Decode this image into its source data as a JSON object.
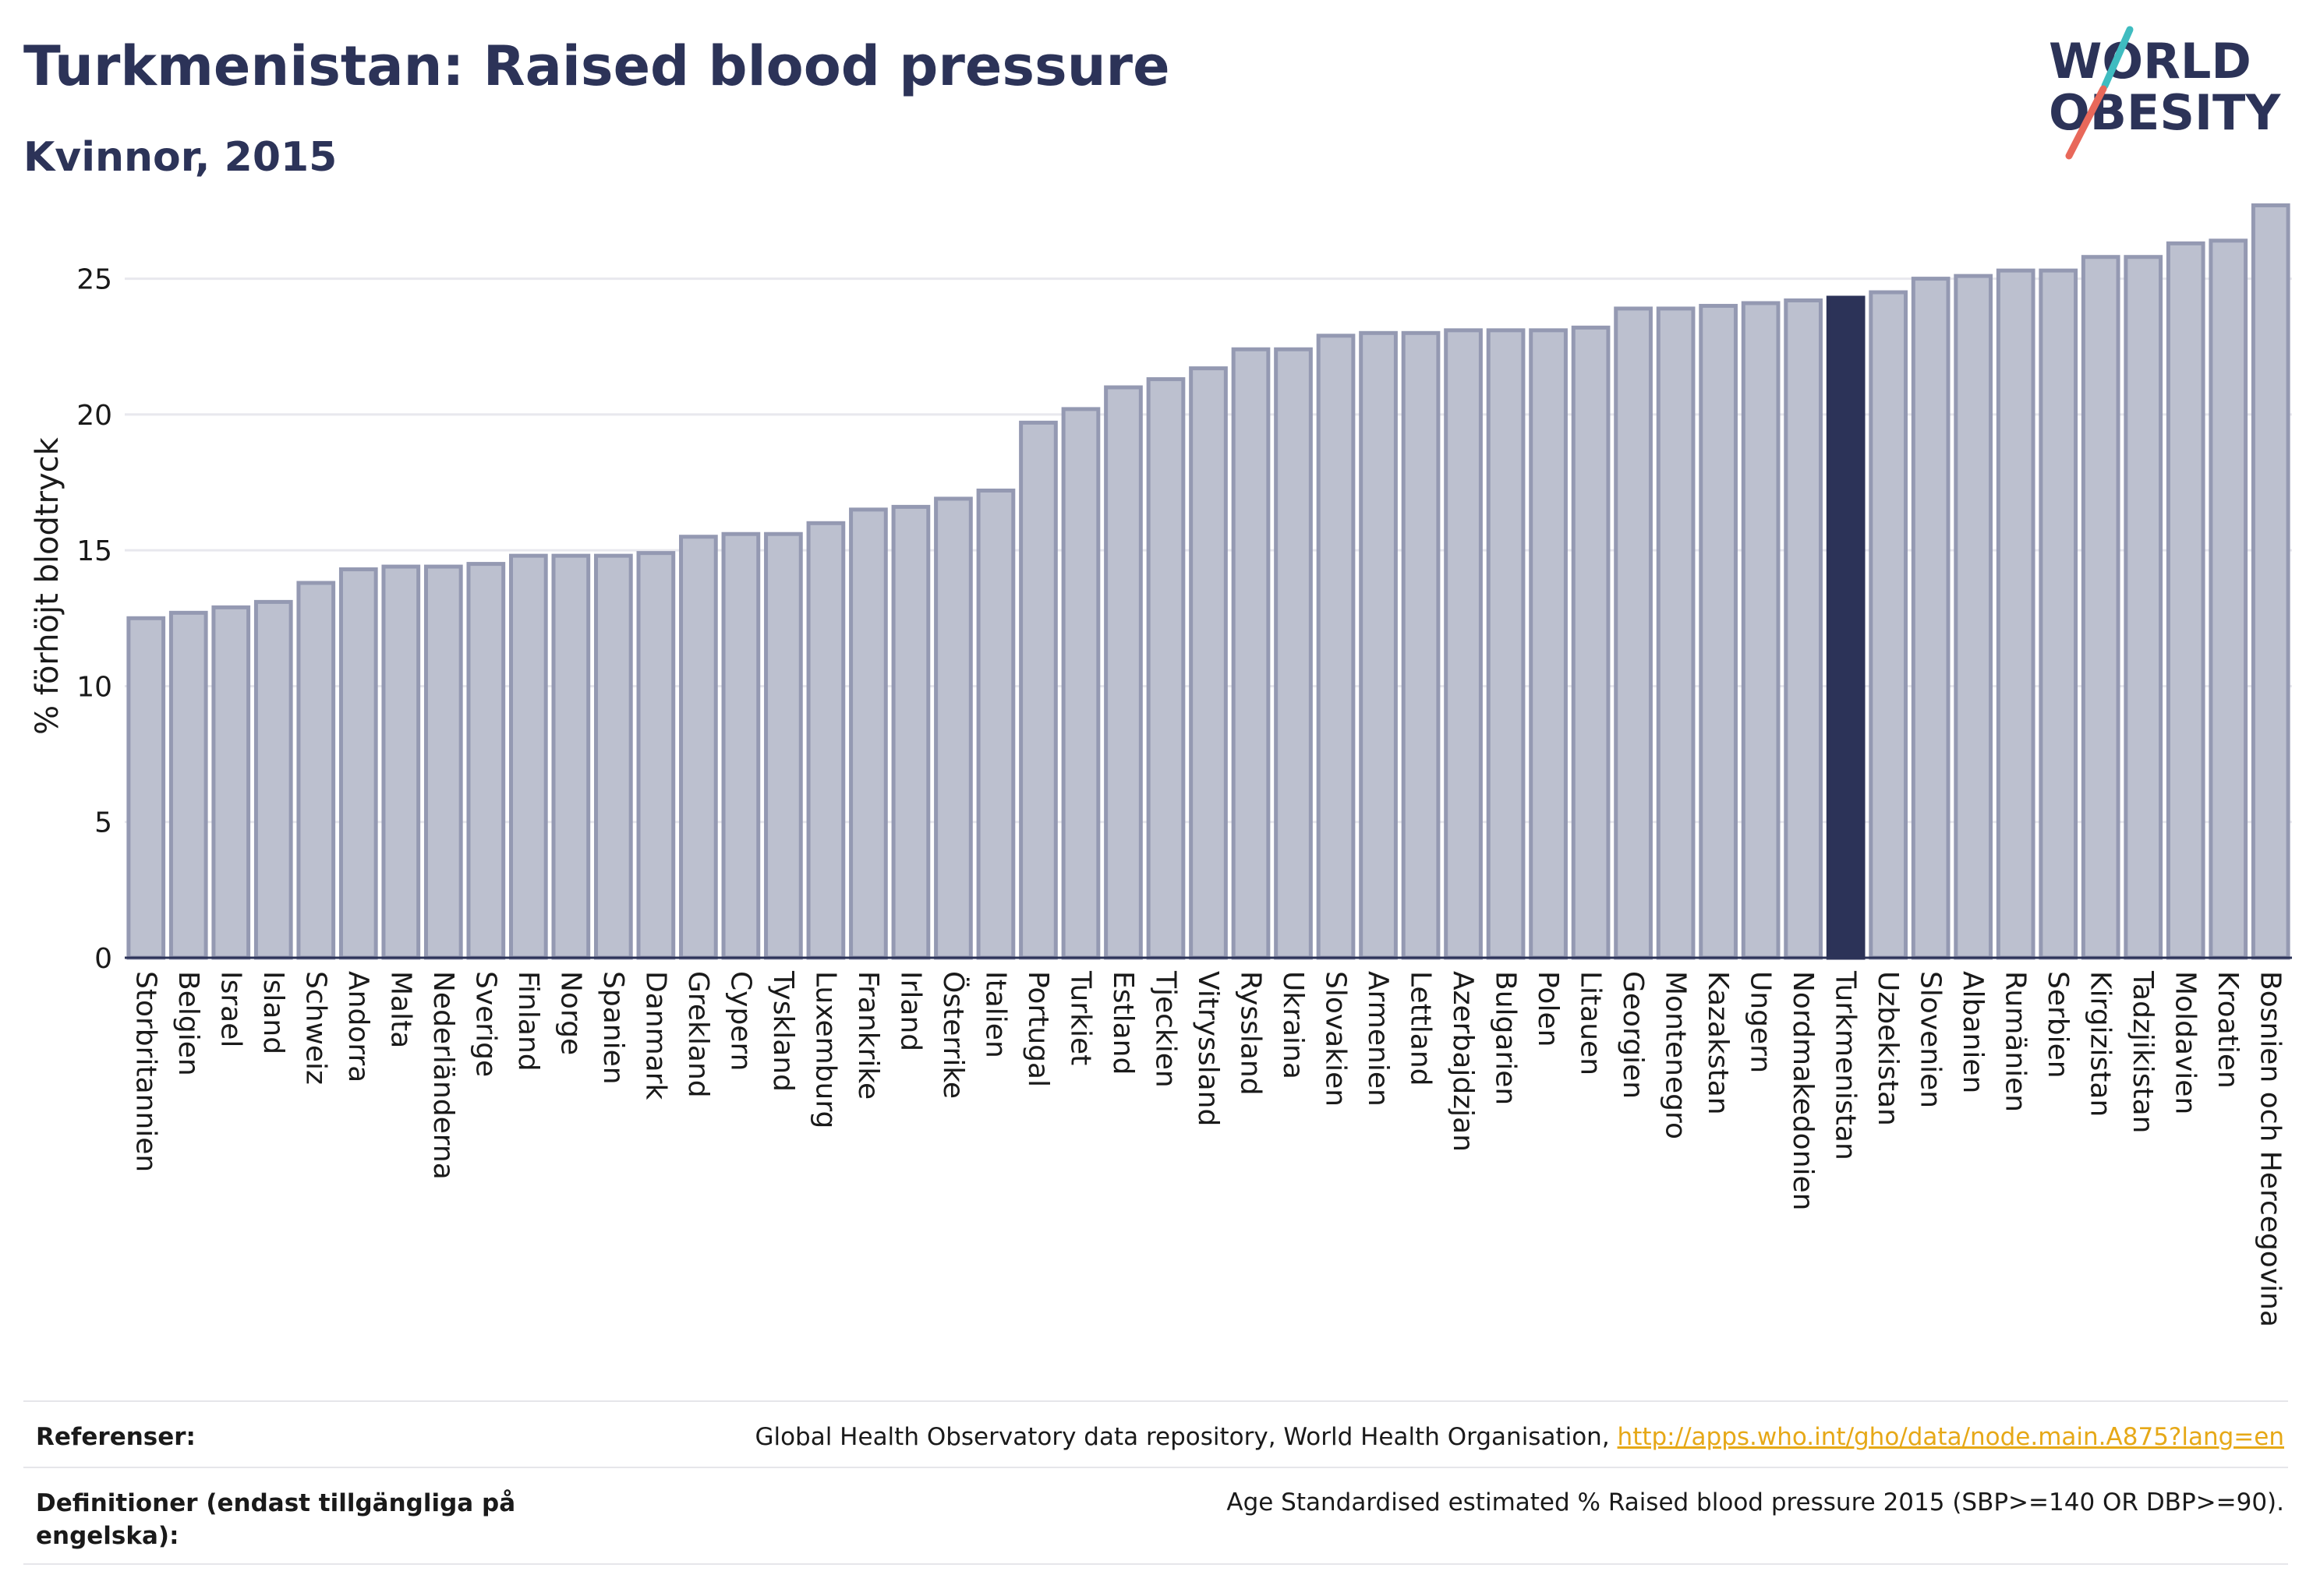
{
  "header": {
    "title": "Turkmenistan: Raised blood pressure",
    "subtitle": "Kvinnor, 2015"
  },
  "logo": {
    "line1": "WORLD",
    "line2": "OBESITY",
    "colors": {
      "text": "#2c3358",
      "slash_teal": "#3fbcc0",
      "slash_red": "#e8685a"
    }
  },
  "colors": {
    "bar_default": "#bcc0cf",
    "bar_default_stroke": "#9499b2",
    "bar_highlight": "#2c3358",
    "grid": "#e8e8ee",
    "axis": "#2c3358",
    "text": "#1a1a1a"
  },
  "chart_data": {
    "type": "bar",
    "ylabel": "% förhöjt blodtryck",
    "ylim": [
      0,
      27.8
    ],
    "yticks": [
      0,
      5,
      10,
      15,
      20,
      25
    ],
    "grid": true,
    "highlight": "Turkmenistan",
    "categories": [
      "Storbritannien",
      "Belgien",
      "Israel",
      "Island",
      "Schweiz",
      "Andorra",
      "Malta",
      "Nederländerna",
      "Sverige",
      "Finland",
      "Norge",
      "Spanien",
      "Danmark",
      "Grekland",
      "Cypern",
      "Tyskland",
      "Luxemburg",
      "Frankrike",
      "Irland",
      "Österrike",
      "Italien",
      "Portugal",
      "Turkiet",
      "Estland",
      "Tjeckien",
      "Vitryssland",
      "Ryssland",
      "Ukraina",
      "Slovakien",
      "Armenien",
      "Lettland",
      "Azerbajdzjan",
      "Bulgarien",
      "Polen",
      "Litauen",
      "Georgien",
      "Montenegro",
      "Kazakstan",
      "Ungern",
      "Nordmakedonien",
      "Turkmenistan",
      "Uzbekistan",
      "Slovenien",
      "Albanien",
      "Rumänien",
      "Serbien",
      "Kirgizistan",
      "Tadzjikistan",
      "Moldavien",
      "Kroatien",
      "Bosnien och Hercegovina"
    ],
    "values": [
      12.5,
      12.7,
      12.9,
      13.1,
      13.8,
      14.3,
      14.4,
      14.4,
      14.5,
      14.8,
      14.8,
      14.8,
      14.9,
      15.5,
      15.6,
      15.6,
      16.0,
      16.5,
      16.6,
      16.9,
      17.2,
      19.7,
      20.2,
      21.0,
      21.3,
      21.7,
      22.4,
      22.4,
      22.9,
      23.0,
      23.0,
      23.1,
      23.1,
      23.1,
      23.2,
      23.9,
      23.9,
      24.0,
      24.1,
      24.2,
      24.3,
      24.5,
      25.0,
      25.1,
      25.3,
      25.3,
      25.8,
      25.8,
      26.3,
      26.4,
      27.7
    ]
  },
  "footer": {
    "references_label": "Referenser:",
    "references_text": "Global Health Observatory data repository, World Health Organisation, ",
    "references_link": "http://apps.who.int/gho/data/node.main.A875?lang=en",
    "definitions_label_line1": "Definitioner (endast tillgängliga på",
    "definitions_label_line2": "engelska):",
    "definitions_text": "Age Standardised estimated % Raised blood pressure 2015 (SBP>=140 OR DBP>=90)."
  }
}
